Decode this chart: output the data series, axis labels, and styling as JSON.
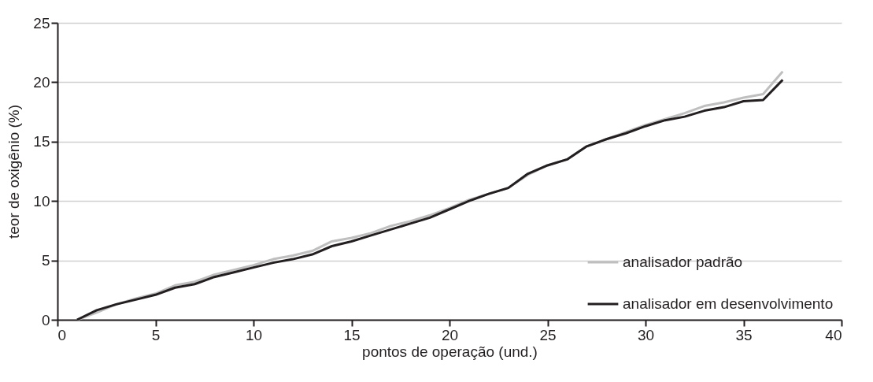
{
  "chart_data": {
    "type": "line",
    "xlabel": "pontos de operação (und.)",
    "ylabel": "teor de oxigênio (%)",
    "x": [
      1,
      2,
      3,
      4,
      5,
      6,
      7,
      8,
      9,
      10,
      11,
      12,
      13,
      14,
      15,
      16,
      17,
      18,
      19,
      20,
      21,
      22,
      23,
      24,
      25,
      26,
      27,
      28,
      29,
      30,
      31,
      32,
      33,
      34,
      35,
      36,
      37
    ],
    "series": [
      {
        "name": "analisador padrão",
        "color": "#bfbfbf",
        "values": [
          0,
          0.6,
          1.3,
          1.8,
          2.2,
          2.9,
          3.2,
          3.8,
          4.2,
          4.6,
          5.1,
          5.4,
          5.8,
          6.6,
          6.9,
          7.3,
          7.9,
          8.3,
          8.8,
          9.4,
          10.1,
          10.6,
          11.1,
          12.2,
          13.0,
          13.5,
          14.6,
          15.2,
          15.8,
          16.4,
          16.9,
          17.4,
          18.0,
          18.3,
          18.7,
          19.0,
          20.9
        ]
      },
      {
        "name": "analisador em desenvolvimento",
        "color": "#231f20",
        "values": [
          0,
          0.8,
          1.3,
          1.7,
          2.1,
          2.7,
          3.0,
          3.6,
          4.0,
          4.4,
          4.8,
          5.1,
          5.5,
          6.2,
          6.6,
          7.1,
          7.6,
          8.1,
          8.6,
          9.3,
          10.0,
          10.6,
          11.1,
          12.3,
          13.0,
          13.5,
          14.6,
          15.2,
          15.7,
          16.3,
          16.8,
          17.1,
          17.6,
          17.9,
          18.4,
          18.5,
          20.2
        ]
      }
    ],
    "xlim": [
      0,
      40
    ],
    "xticks": [
      0,
      5,
      10,
      15,
      20,
      25,
      30,
      35,
      40
    ],
    "ylim": [
      0,
      25
    ],
    "yticks": [
      0,
      5,
      10,
      15,
      20,
      25
    ],
    "grid": "y",
    "legend": "bottom right",
    "marker": "none",
    "line_style": "solid"
  }
}
